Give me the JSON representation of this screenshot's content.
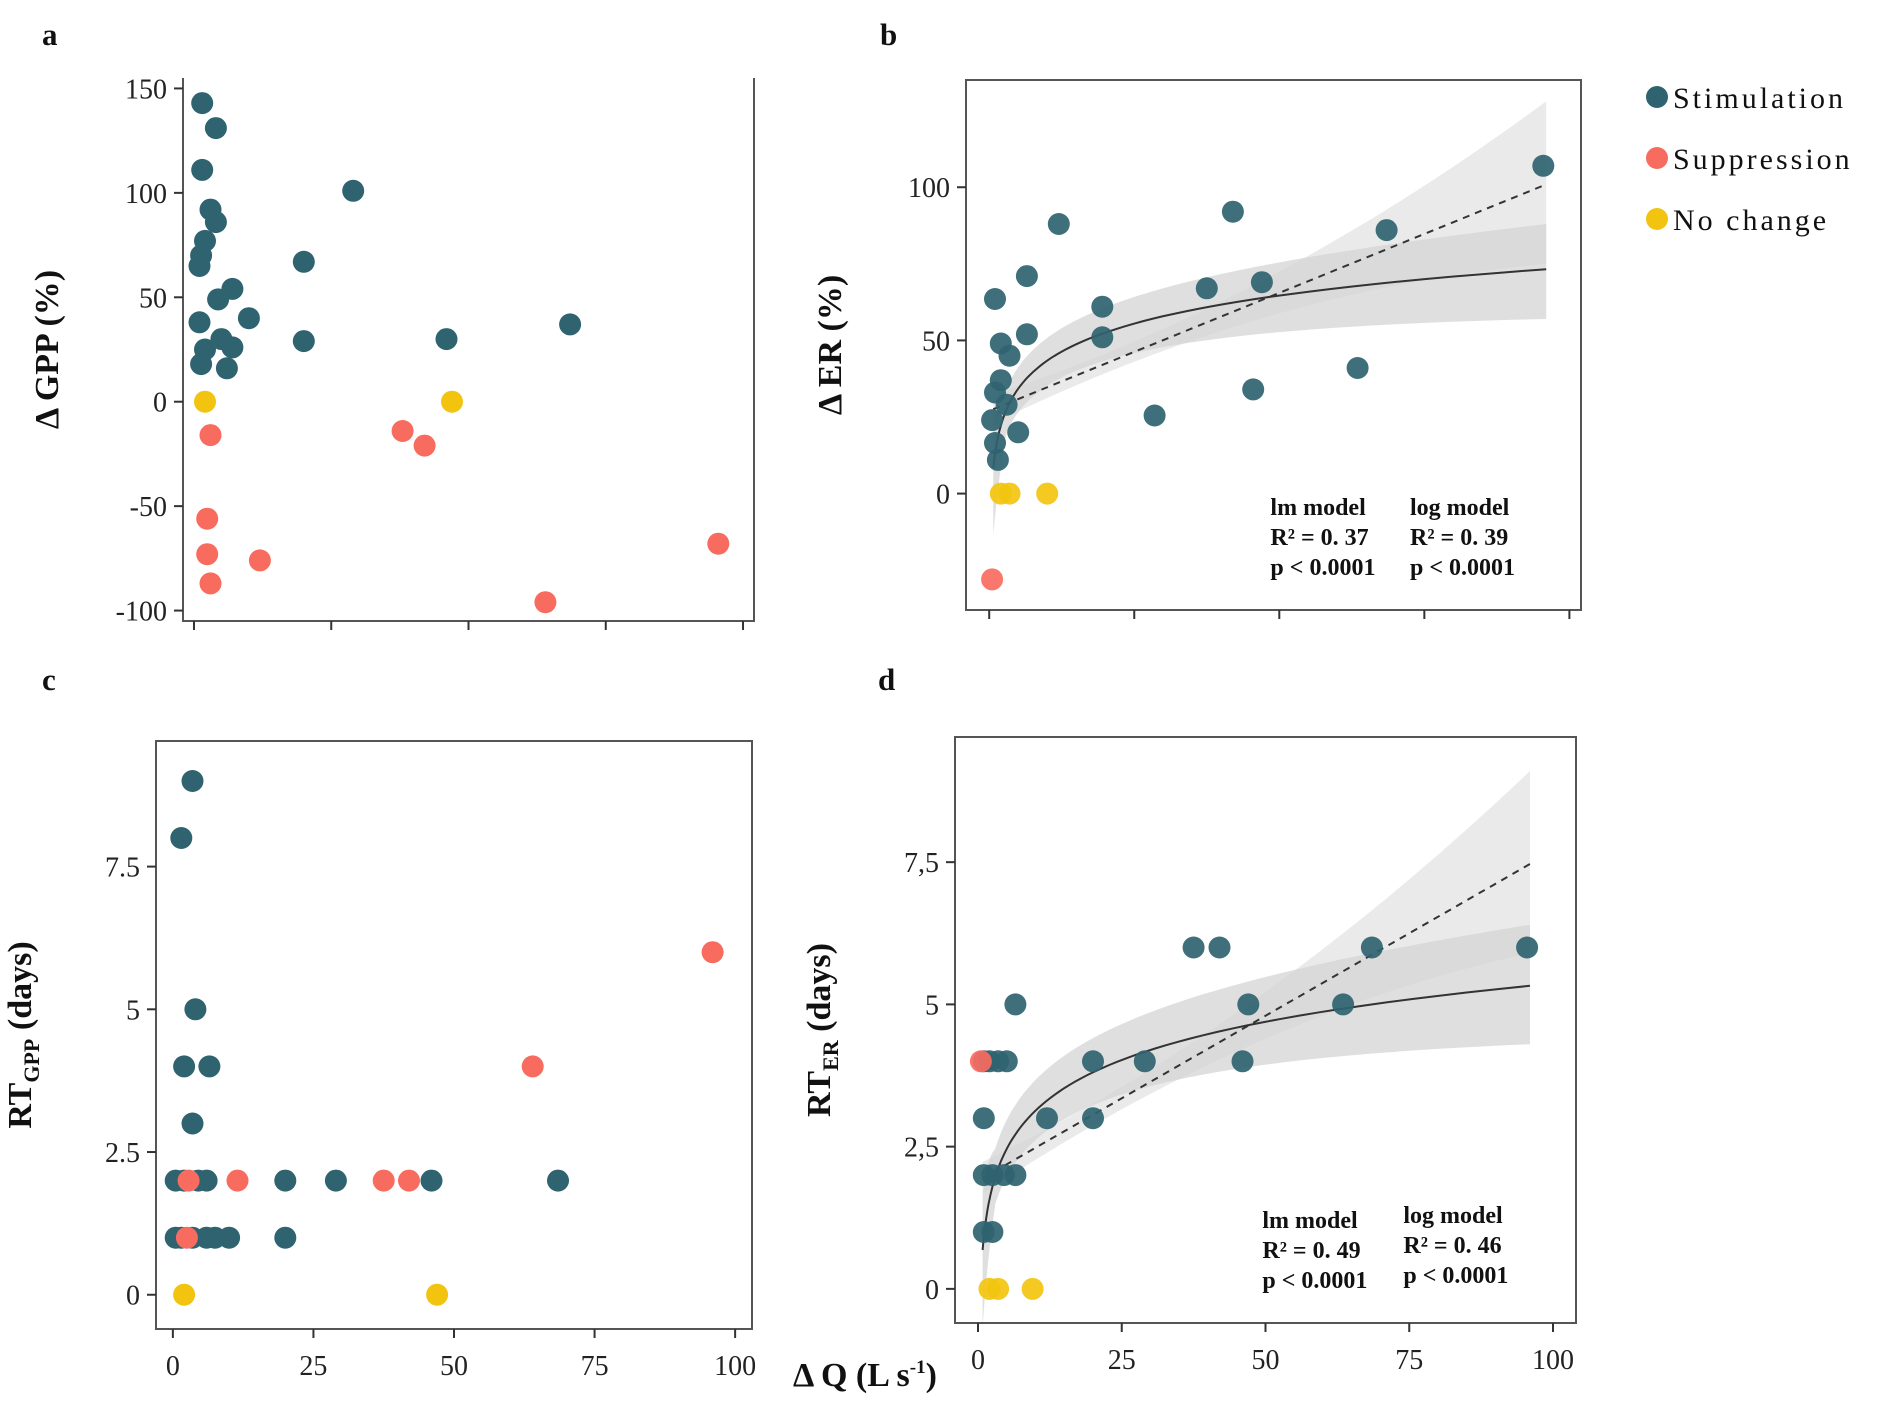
{
  "colors": {
    "Stimulation": "#2f6370",
    "Suppression": "#f86b5f",
    "No change": "#f2c40f",
    "band_outer": "#e6e6e6",
    "band_inner": "#d4d4d4",
    "fit_line": "#333333",
    "frame": "#555555"
  },
  "legend": {
    "entries": [
      "Stimulation",
      "Suppression",
      "No change"
    ],
    "placement": "top-right"
  },
  "shared_xlabel": "Δ Q (L s",
  "shared_xlabel_sup": "-1",
  "shared_xlabel_end": ")",
  "chart_data": [
    {
      "panel": "a",
      "type": "scatter",
      "ylabel": "Δ GPP (%)",
      "xlim": [
        -2,
        102
      ],
      "ylim": [
        -105,
        155
      ],
      "xticks": [
        0,
        25,
        50,
        75,
        100
      ],
      "xtick_labels": [
        "",
        "",
        "",
        "",
        ""
      ],
      "yticks": [
        150,
        100,
        50,
        0,
        -50,
        -100
      ],
      "ytick_labels": [
        "150",
        "100",
        "50",
        "0",
        "-50",
        "-100"
      ],
      "series": [
        {
          "name": "Stimulation",
          "points": [
            [
              1.5,
              143
            ],
            [
              4,
              131
            ],
            [
              1.5,
              111
            ],
            [
              3,
              92
            ],
            [
              4,
              86
            ],
            [
              2,
              77
            ],
            [
              1.3,
              70
            ],
            [
              1,
              65
            ],
            [
              4.4,
              49
            ],
            [
              7,
              54
            ],
            [
              1,
              38
            ],
            [
              10,
              40
            ],
            [
              5,
              30
            ],
            [
              7,
              26
            ],
            [
              2,
              25
            ],
            [
              1.3,
              18
            ],
            [
              6,
              16
            ],
            [
              20,
              67
            ],
            [
              20,
              29
            ],
            [
              29,
              101
            ],
            [
              46,
              30
            ],
            [
              68.5,
              37
            ]
          ]
        },
        {
          "name": "Suppression",
          "points": [
            [
              3,
              -16
            ],
            [
              2.4,
              -56
            ],
            [
              2.4,
              -73
            ],
            [
              3,
              -87
            ],
            [
              12,
              -76
            ],
            [
              38,
              -14
            ],
            [
              42,
              -21
            ],
            [
              64,
              -96
            ],
            [
              95.5,
              -68
            ]
          ]
        },
        {
          "name": "No change",
          "points": [
            [
              2,
              0
            ],
            [
              47,
              0
            ]
          ]
        }
      ],
      "fits": null
    },
    {
      "panel": "b",
      "type": "scatter",
      "ylabel": "Δ ER (%)",
      "xlim": [
        -4,
        102
      ],
      "ylim": [
        -38,
        135
      ],
      "xticks": [
        0,
        25,
        50,
        75,
        100
      ],
      "xtick_labels": [
        "",
        "",
        "",
        "",
        ""
      ],
      "yticks": [
        100,
        50,
        0
      ],
      "ytick_labels": [
        "100",
        "50",
        "0"
      ],
      "series": [
        {
          "name": "Stimulation",
          "points": [
            [
              1,
              63.5
            ],
            [
              2,
              49
            ],
            [
              3.5,
              45
            ],
            [
              2,
              37
            ],
            [
              1,
              33
            ],
            [
              3,
              29
            ],
            [
              0.5,
              24
            ],
            [
              1,
              16.5
            ],
            [
              1.5,
              11
            ],
            [
              5,
              20
            ],
            [
              6.5,
              52
            ],
            [
              6.5,
              71
            ],
            [
              12,
              88
            ],
            [
              19.5,
              61
            ],
            [
              19.5,
              51
            ],
            [
              28.5,
              25.5
            ],
            [
              37.5,
              67
            ],
            [
              42,
              92
            ],
            [
              45.5,
              34
            ],
            [
              47,
              69
            ],
            [
              63.5,
              41
            ],
            [
              68.5,
              86
            ],
            [
              95.5,
              107
            ]
          ]
        },
        {
          "name": "Suppression",
          "points": [
            [
              0.5,
              -28
            ]
          ]
        },
        {
          "name": "No change",
          "points": [
            [
              2,
              0
            ],
            [
              3.5,
              0
            ],
            [
              10,
              0
            ]
          ]
        }
      ],
      "fits": {
        "lm": {
          "intercept": 27,
          "slope": 0.77,
          "ci_low_end": 75,
          "ci_high_end": 128
        },
        "log": {
          "a": 13,
          "b": 13.2,
          "ci_low_end": 57,
          "ci_high_end": 88
        },
        "x_range": [
          0.7,
          96
        ]
      },
      "stats": {
        "lm_title": "lm model",
        "lm_r2": "R² = 0. 37",
        "lm_p": "p < 0.0001",
        "log_title": "log model",
        "log_r2": "R² = 0. 39",
        "log_p": "p < 0.0001"
      }
    },
    {
      "panel": "c",
      "type": "scatter",
      "ylabel": "RT",
      "ylabel_sub": "GPP",
      "ylabel_end": " (days)",
      "xlim": [
        -3,
        103
      ],
      "ylim": [
        -0.6,
        9.7
      ],
      "xticks": [
        0,
        25,
        50,
        75,
        100
      ],
      "xtick_labels": [
        "0",
        "25",
        "50",
        "75",
        "100"
      ],
      "yticks": [
        7.5,
        5,
        2.5,
        0
      ],
      "ytick_labels": [
        "7.5",
        "5",
        "2.5",
        "0"
      ],
      "series": [
        {
          "name": "Stimulation",
          "points": [
            [
              3.5,
              9
            ],
            [
              1.5,
              8
            ],
            [
              4,
              5
            ],
            [
              2,
              4
            ],
            [
              6.5,
              4
            ],
            [
              3.5,
              3
            ],
            [
              0.5,
              2
            ],
            [
              2,
              2
            ],
            [
              4.5,
              2
            ],
            [
              6,
              2
            ],
            [
              20,
              2
            ],
            [
              29,
              2
            ],
            [
              46,
              2
            ],
            [
              68.5,
              2
            ],
            [
              0.5,
              1
            ],
            [
              3.5,
              1
            ],
            [
              6,
              1
            ],
            [
              7.5,
              1
            ],
            [
              10,
              1
            ],
            [
              20,
              1
            ],
            [
              1.5,
              1
            ]
          ]
        },
        {
          "name": "Suppression",
          "points": [
            [
              2.8,
              2
            ],
            [
              11.5,
              2
            ],
            [
              37.5,
              2
            ],
            [
              42,
              2
            ],
            [
              64,
              4
            ],
            [
              96,
              6
            ],
            [
              2.5,
              1
            ]
          ]
        },
        {
          "name": "No change",
          "points": [
            [
              2,
              0
            ],
            [
              47,
              0
            ]
          ]
        }
      ],
      "fits": null
    },
    {
      "panel": "d",
      "type": "scatter",
      "ylabel": "RT",
      "ylabel_sub": "ER",
      "ylabel_end": " (days)",
      "xlim": [
        -4,
        104
      ],
      "ylim": [
        -0.6,
        9.7
      ],
      "xticks": [
        0,
        25,
        50,
        75,
        100
      ],
      "xtick_labels": [
        "0",
        "25",
        "50",
        "75",
        "100"
      ],
      "yticks": [
        7.5,
        5,
        2.5,
        0
      ],
      "ytick_labels": [
        "7,5",
        "5",
        "2,5",
        "0"
      ],
      "series": [
        {
          "name": "Stimulation",
          "points": [
            [
              6.5,
              5
            ],
            [
              1,
              4
            ],
            [
              2,
              4
            ],
            [
              3.5,
              4
            ],
            [
              5,
              4
            ],
            [
              1,
              3
            ],
            [
              1,
              2
            ],
            [
              2.5,
              2
            ],
            [
              4.5,
              2
            ],
            [
              6.5,
              2
            ],
            [
              1,
              1
            ],
            [
              2.5,
              1
            ],
            [
              12,
              3
            ],
            [
              20,
              4
            ],
            [
              20,
              3
            ],
            [
              29,
              4
            ],
            [
              37.5,
              6
            ],
            [
              42,
              6
            ],
            [
              46,
              4
            ],
            [
              47,
              5
            ],
            [
              63.5,
              5
            ],
            [
              68.5,
              6
            ],
            [
              95.5,
              6
            ]
          ]
        },
        {
          "name": "Suppression",
          "points": [
            [
              0.5,
              4
            ]
          ]
        },
        {
          "name": "No change",
          "points": [
            [
              2,
              0
            ],
            [
              3.5,
              0
            ],
            [
              9.5,
              0
            ]
          ]
        }
      ],
      "fits": {
        "lm": {
          "intercept": 1.9,
          "slope": 0.058,
          "ci_low_end": 5.9,
          "ci_high_end": 9.1
        },
        "log": {
          "a": 0.9,
          "b": 0.97,
          "ci_low_end": 4.3,
          "ci_high_end": 6.4
        },
        "x_range": [
          0.8,
          96
        ]
      },
      "stats": {
        "lm_title": "lm model",
        "lm_r2": "R² = 0. 49",
        "lm_p": "p < 0.0001",
        "log_title": "log model",
        "log_r2": "R² = 0. 46",
        "log_p": "p < 0.0001"
      }
    }
  ]
}
